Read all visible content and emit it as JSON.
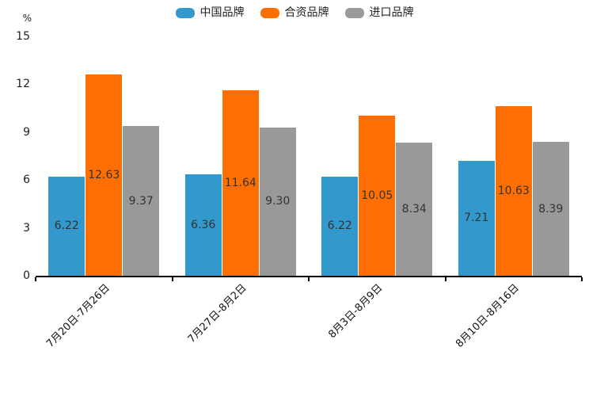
{
  "chart_data": {
    "type": "bar",
    "title": "",
    "unit_label": "%",
    "categories": [
      "7月20日-7月26日",
      "7月27日-8月2日",
      "8月3日-8月9日",
      "8月10日-8月16日"
    ],
    "series": [
      {
        "name": "中国品牌",
        "color": "#3398CB",
        "values": [
          6.22,
          6.36,
          6.22,
          7.21
        ]
      },
      {
        "name": "合资品牌",
        "color": "#FF6E00",
        "values": [
          12.63,
          11.64,
          10.05,
          10.63
        ]
      },
      {
        "name": "进口品牌",
        "color": "#999999",
        "values": [
          9.37,
          9.3,
          8.34,
          8.39
        ]
      }
    ],
    "value_label_format": [
      "6.22",
      "12.63",
      "9.37",
      "6.36",
      "11.64",
      "9.30",
      "6.22",
      "10.05",
      "8.34",
      "7.21",
      "10.63",
      "8.39"
    ],
    "ylim": [
      0,
      15
    ],
    "yticks": [
      0,
      3,
      6,
      9,
      12,
      15
    ],
    "grid": false,
    "legend_position": "top-center",
    "value_labels": "inside-center",
    "xlabel_rotation_deg": 45
  }
}
